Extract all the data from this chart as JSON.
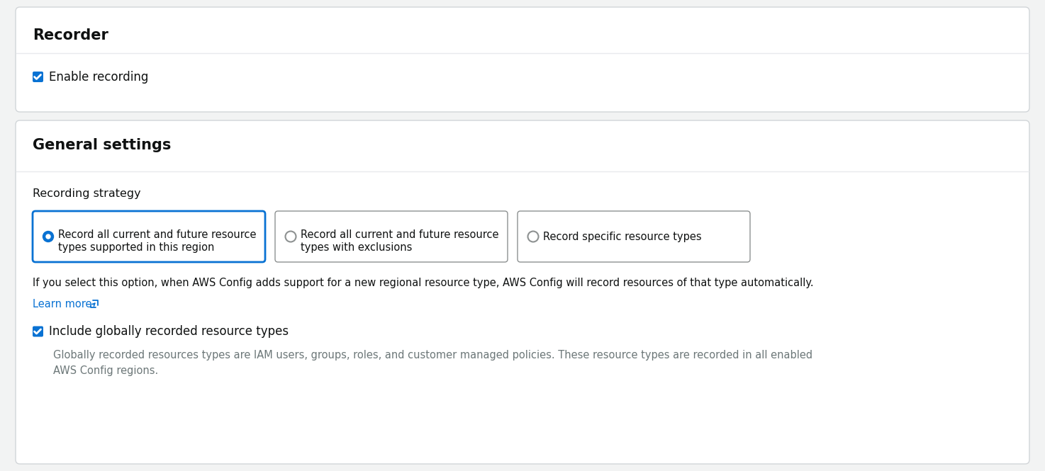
{
  "bg_color": "#f2f3f3",
  "panel_color": "#ffffff",
  "border_color": "#d1d5d8",
  "divider_color": "#e8eaed",
  "text_dark": "#0f1111",
  "text_gray": "#6c7778",
  "text_blue": "#0972d3",
  "checkbox_blue": "#0972d3",
  "radio_blue": "#0972d3",
  "selected_border": "#0972d3",
  "unselected_border": "#8d9191",
  "recorder_title": "Recorder",
  "enable_recording_label": "Enable recording",
  "general_settings_title": "General settings",
  "recording_strategy_label": "Recording strategy",
  "option1_line1": "Record all current and future resource",
  "option1_line2": "types supported in this region",
  "option2_line1": "Record all current and future resource",
  "option2_line2": "types with exclusions",
  "option3_label": "Record specific resource types",
  "info_text": "If you select this option, when AWS Config adds support for a new regional resource type, AWS Config will record resources of that type automatically.",
  "learn_more_text": "Learn more ⧉",
  "include_globally_label": "Include globally recorded resource types",
  "include_globally_desc1": "Globally recorded resources types are IAM users, groups, roles, and customer managed policies. These resource types are recorded in all enabled",
  "include_globally_desc2": "AWS Config regions.",
  "figw": 14.74,
  "figh": 6.65,
  "dpi": 100
}
